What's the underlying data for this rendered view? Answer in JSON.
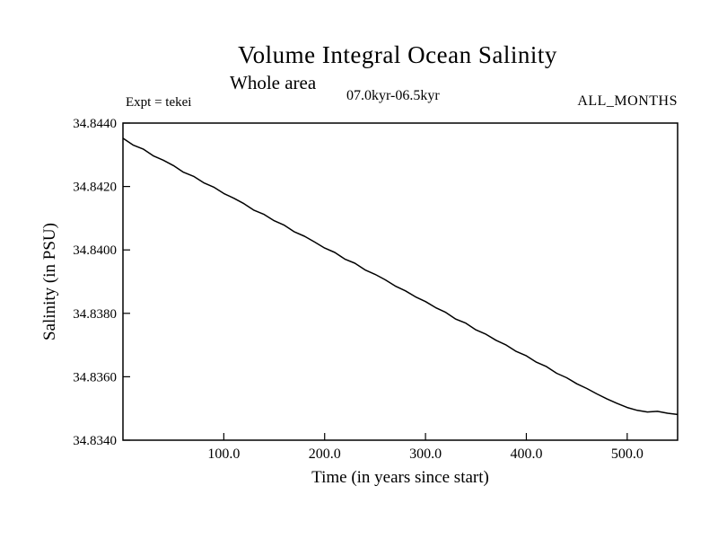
{
  "page": {
    "background_color": "#ffffff",
    "foreground_color": "#000000"
  },
  "chart_data": {
    "type": "line",
    "title": "Volume Integral Ocean Salinity",
    "subtitle": "Whole area",
    "period_label": "07.0kyr-06.5kyr",
    "months_label": "ALL_MONTHS",
    "expt_label": "Expt = tekei",
    "xlabel": "Time (in years since start)",
    "ylabel": "Salinity (in PSU)",
    "xlim": [
      0,
      550
    ],
    "ylim": [
      34.834,
      34.844
    ],
    "grid": false,
    "legend": "none",
    "line_color": "#000000",
    "x_ticks": [
      100,
      200,
      300,
      400,
      500
    ],
    "x_tick_labels": [
      "100.0",
      "200.0",
      "300.0",
      "400.0",
      "500.0"
    ],
    "y_ticks": [
      34.834,
      34.836,
      34.838,
      34.84,
      34.842,
      34.844
    ],
    "y_tick_labels": [
      "34.8340",
      "34.8360",
      "34.8380",
      "34.8400",
      "34.8420",
      "34.8440"
    ],
    "series": [
      {
        "name": "volume-integral-salinity",
        "x": [
          0,
          10,
          20,
          30,
          40,
          50,
          60,
          70,
          80,
          90,
          100,
          110,
          120,
          130,
          140,
          150,
          160,
          170,
          180,
          190,
          200,
          210,
          220,
          230,
          240,
          250,
          260,
          270,
          280,
          290,
          300,
          310,
          320,
          330,
          340,
          350,
          360,
          370,
          380,
          390,
          400,
          410,
          420,
          430,
          440,
          450,
          460,
          470,
          480,
          490,
          500,
          510,
          520,
          530,
          540,
          550
        ],
        "y": [
          34.84352,
          34.84331,
          34.84318,
          34.84297,
          34.84283,
          34.84266,
          34.84245,
          34.84232,
          34.84212,
          34.84198,
          34.84178,
          34.84163,
          34.84146,
          34.84125,
          34.84112,
          34.84092,
          34.84078,
          34.84057,
          34.84043,
          34.84025,
          34.84006,
          34.83992,
          34.83971,
          34.83958,
          34.83937,
          34.83923,
          34.83906,
          34.83886,
          34.83871,
          34.83852,
          34.83837,
          34.83818,
          34.83803,
          34.83782,
          34.83769,
          34.83748,
          34.83734,
          34.83715,
          34.837,
          34.8368,
          34.83666,
          34.83646,
          34.83632,
          34.83611,
          34.83597,
          34.83578,
          34.83563,
          34.83546,
          34.8353,
          34.83516,
          34.83503,
          34.83494,
          34.83489,
          34.83491,
          34.83485,
          34.83481
        ]
      }
    ]
  }
}
